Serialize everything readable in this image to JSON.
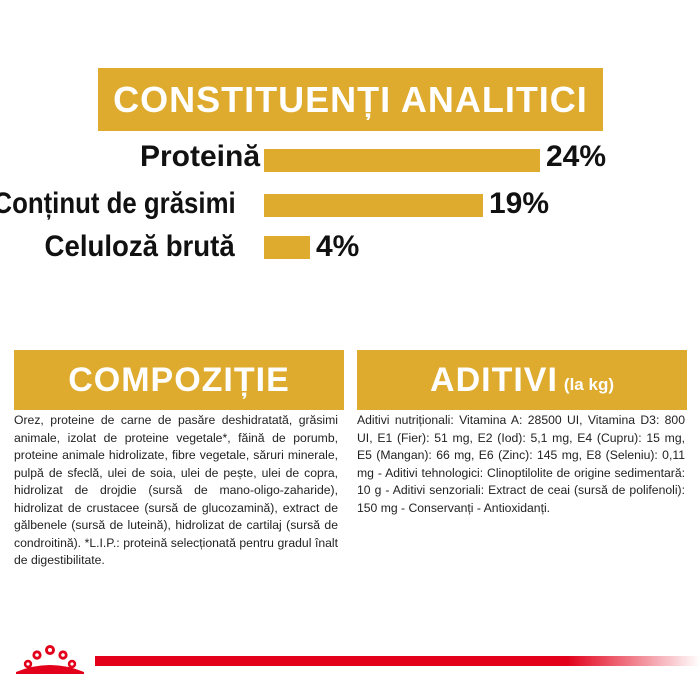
{
  "analitic": {
    "title": "CONSTITUENȚI ANALITICI",
    "rows": [
      {
        "label": "Proteină",
        "value": "24%",
        "fraction": 0.24
      },
      {
        "label": "Conținut de grăsimi",
        "value": "19%",
        "fraction": 0.19
      },
      {
        "label": "Celuloză brută",
        "value": "4%",
        "fraction": 0.04
      }
    ]
  },
  "compozitie": {
    "title": "COMPOZIȚIE",
    "text": "Orez, proteine de carne de pasăre deshidratată, grăsimi animale, izolat de proteine vegetale*, făină de porumb, proteine animale hidrolizate, fibre vegetale, săruri minerale, pulpă de sfeclă, ulei de soia, ulei de pește, ulei de copra, hidrolizat de drojdie (sursă de mano-oligo-zaharide), hidrolizat de crustacee (sursă de glucozamină), extract de gălbenele (sursă de luteină), hidrolizat de cartilaj (sursă de condroitină). *L.I.P.: proteină selecționată pentru gradul înalt de digestibilitate."
  },
  "aditivi": {
    "title": "ADITIVI",
    "subtitle": "(la kg)",
    "text": "Aditivi nutriționali: Vitamina A: 28500 UI, Vitamina D3: 800 UI, E1 (Fier): 51 mg, E2 (Iod): 5,1 mg, E4 (Cupru): 15 mg, E5 (Mangan): 66 mg, E6 (Zinc): 145 mg, E8 (Seleniu): 0,11 mg - Aditivi tehnologici: Clinoptilolite de origine sedimentară: 10 g - Aditivi senzoriali: Extract de ceai (sursă de polifenoli): 150 mg - Conservanți - Antioxidanți."
  },
  "colors": {
    "gold": "#deab2e",
    "red": "#e2001a"
  },
  "logo": {
    "icon": "royal-canin-crown-icon"
  }
}
